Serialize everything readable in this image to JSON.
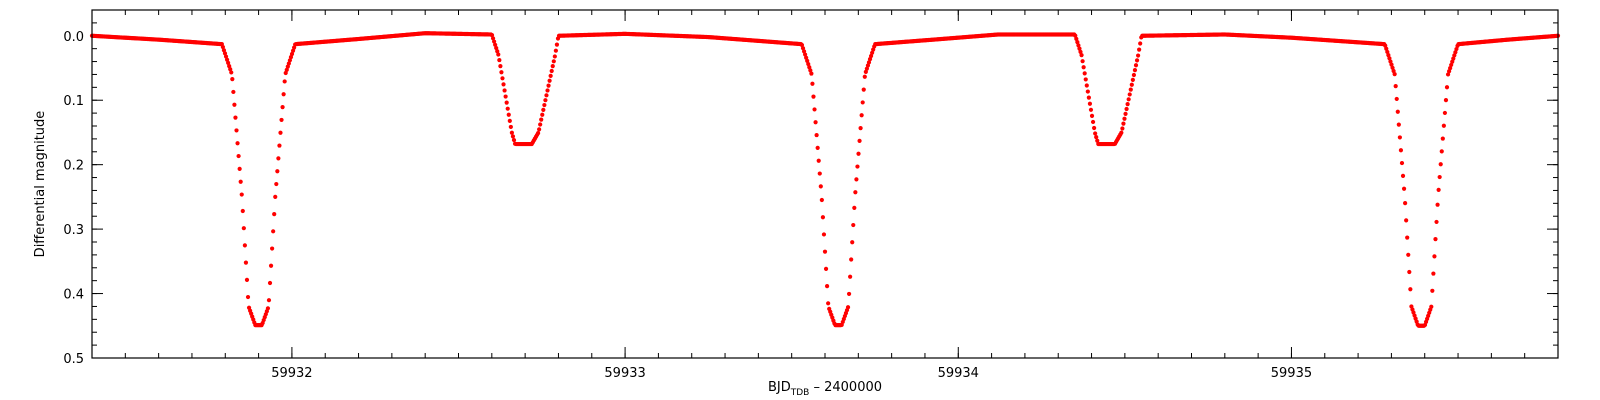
{
  "chart_data": {
    "type": "scatter",
    "xlabel": {
      "main": "BJD",
      "subscript": "TDB",
      "suffix": " – 2400000"
    },
    "ylabel": "Differential magnitude",
    "xlim": [
      59931.4,
      59935.8
    ],
    "ylim": [
      0.5,
      -0.04
    ],
    "y_inverted": true,
    "x_ticks": [
      59932,
      59933,
      59934,
      59935
    ],
    "x_tick_labels": [
      "59932",
      "59933",
      "59934",
      "59935"
    ],
    "y_ticks": [
      0.0,
      0.1,
      0.2,
      0.3,
      0.4,
      0.5
    ],
    "y_tick_labels": [
      "0.0",
      "0.1",
      "0.2",
      "0.3",
      "0.4",
      "0.5"
    ],
    "x_minor_step": 0.1,
    "y_minor_step": 0.02,
    "grid": false,
    "series": [
      {
        "color": "#ff0000",
        "marker": "dot",
        "points": [
          [
            59931.4,
            0.0
          ],
          [
            59931.6,
            0.006
          ],
          [
            59931.79,
            0.013
          ],
          [
            59931.82,
            0.06
          ],
          [
            59931.85,
            0.25
          ],
          [
            59931.87,
            0.42
          ],
          [
            59931.89,
            0.449
          ],
          [
            59931.91,
            0.449
          ],
          [
            59931.93,
            0.42
          ],
          [
            59931.95,
            0.25
          ],
          [
            59931.98,
            0.06
          ],
          [
            59932.01,
            0.013
          ],
          [
            59932.2,
            0.005
          ],
          [
            59932.4,
            -0.004
          ],
          [
            59932.6,
            -0.002
          ],
          [
            59932.62,
            0.03
          ],
          [
            59932.66,
            0.15
          ],
          [
            59932.67,
            0.168
          ],
          [
            59932.72,
            0.168
          ],
          [
            59932.74,
            0.15
          ],
          [
            59932.79,
            0.03
          ],
          [
            59932.8,
            0.0
          ],
          [
            59933.0,
            -0.003
          ],
          [
            59933.25,
            0.002
          ],
          [
            59933.53,
            0.013
          ],
          [
            59933.56,
            0.06
          ],
          [
            59933.59,
            0.25
          ],
          [
            59933.61,
            0.42
          ],
          [
            59933.63,
            0.449
          ],
          [
            59933.65,
            0.449
          ],
          [
            59933.67,
            0.42
          ],
          [
            59933.69,
            0.25
          ],
          [
            59933.72,
            0.06
          ],
          [
            59933.75,
            0.013
          ],
          [
            59933.95,
            0.005
          ],
          [
            59934.12,
            -0.002
          ],
          [
            59934.35,
            -0.002
          ],
          [
            59934.37,
            0.03
          ],
          [
            59934.41,
            0.15
          ],
          [
            59934.42,
            0.168
          ],
          [
            59934.47,
            0.168
          ],
          [
            59934.49,
            0.15
          ],
          [
            59934.54,
            0.03
          ],
          [
            59934.55,
            0.0
          ],
          [
            59934.8,
            -0.002
          ],
          [
            59935.0,
            0.003
          ],
          [
            59935.28,
            0.013
          ],
          [
            59935.31,
            0.06
          ],
          [
            59935.34,
            0.25
          ],
          [
            59935.36,
            0.42
          ],
          [
            59935.38,
            0.45
          ],
          [
            59935.4,
            0.45
          ],
          [
            59935.42,
            0.42
          ],
          [
            59935.44,
            0.25
          ],
          [
            59935.47,
            0.06
          ],
          [
            59935.5,
            0.013
          ],
          [
            59935.65,
            0.006
          ],
          [
            59935.8,
            0.0
          ]
        ]
      }
    ]
  }
}
